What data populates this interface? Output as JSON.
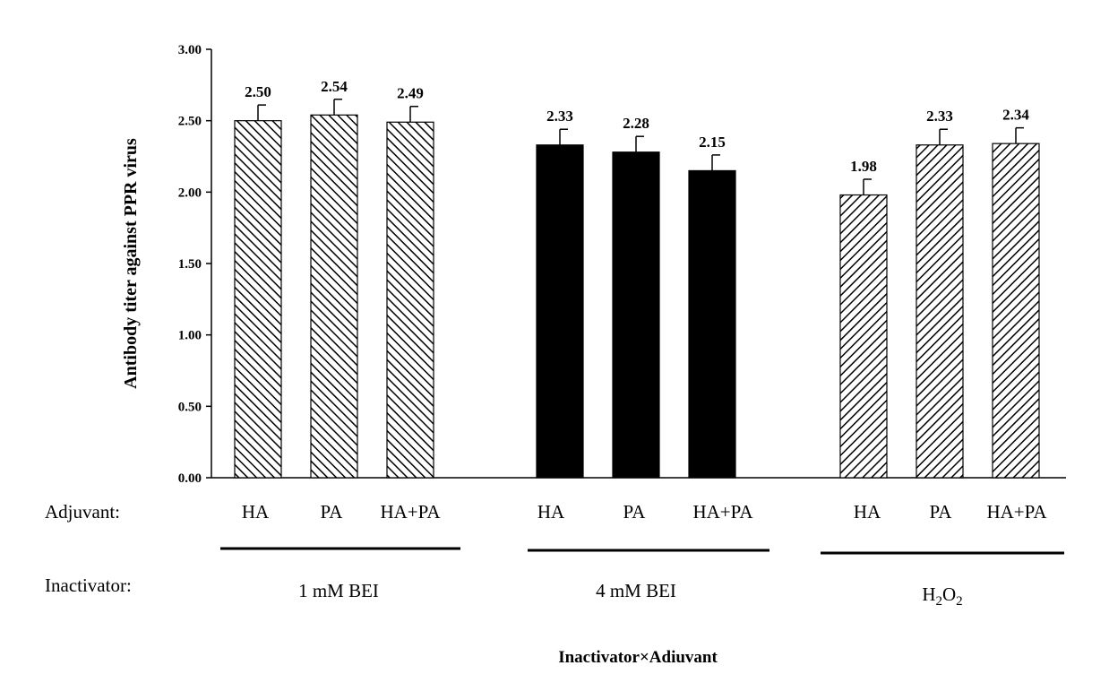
{
  "chart_data": {
    "type": "bar",
    "title": "",
    "ylabel": "Antibody titer against PPR virus",
    "xlabel": "Inactivator×Adiuvant",
    "ylim": [
      0,
      3.0
    ],
    "yticks": [
      "0.00",
      "0.50",
      "1.00",
      "1.50",
      "2.00",
      "2.50",
      "3.00"
    ],
    "row_labels": {
      "adjuvant": "Adjuvant:",
      "inactivator": "Inactivator:"
    },
    "groups": [
      {
        "name": "1 mM BEI",
        "fill": "diagonal-back",
        "bars": [
          {
            "category": "HA",
            "value": 2.5,
            "label": "2.50",
            "error": 0.11
          },
          {
            "category": "PA",
            "value": 2.54,
            "label": "2.54",
            "error": 0.11
          },
          {
            "category": "HA+PA",
            "value": 2.49,
            "label": "2.49",
            "error": 0.11
          }
        ]
      },
      {
        "name": "4 mM BEI",
        "fill": "solid",
        "bars": [
          {
            "category": "HA",
            "value": 2.33,
            "label": "2.33",
            "error": 0.11
          },
          {
            "category": "PA",
            "value": 2.28,
            "label": "2.28",
            "error": 0.11
          },
          {
            "category": "HA+PA",
            "value": 2.15,
            "label": "2.15",
            "error": 0.11
          }
        ]
      },
      {
        "name_base": "H",
        "name_sub1": "2",
        "name_mid": "O",
        "name_sub2": "2",
        "fill": "diagonal-forward",
        "bars": [
          {
            "category": "HA",
            "value": 1.98,
            "label": "1.98",
            "error": 0.11
          },
          {
            "category": "PA",
            "value": 2.33,
            "label": "2.33",
            "error": 0.11
          },
          {
            "category": "HA+PA",
            "value": 2.34,
            "label": "2.34",
            "error": 0.11
          }
        ]
      }
    ],
    "colors": {
      "bar_stroke": "#000000",
      "solid_fill": "#000000",
      "hatch": "#000000"
    },
    "grid": false,
    "legend": "none"
  }
}
